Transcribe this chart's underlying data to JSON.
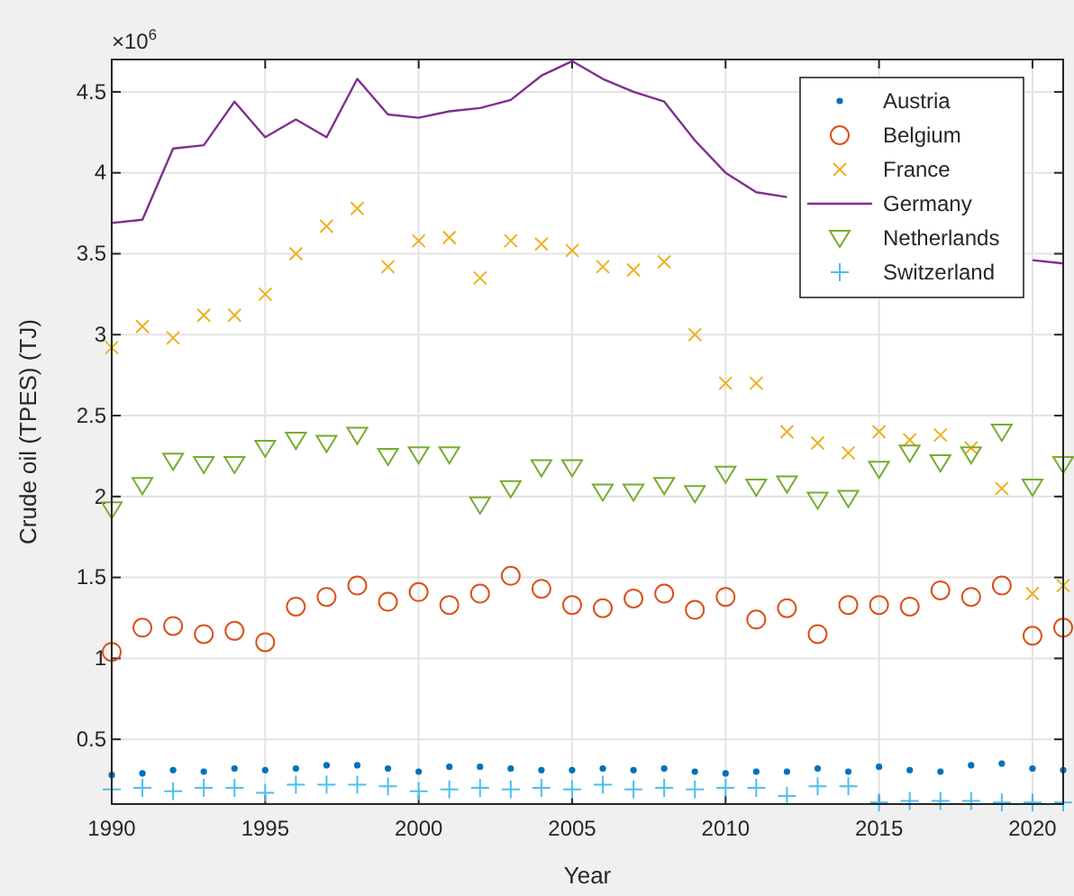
{
  "chart_data": {
    "type": "scatter",
    "xlabel": "Year",
    "ylabel": "Crude oil (TPES) (TJ)",
    "annotations": [
      "×10$^{6}$"
    ],
    "x": [
      1990,
      1991,
      1992,
      1993,
      1994,
      1995,
      1996,
      1997,
      1998,
      1999,
      2000,
      2001,
      2002,
      2003,
      2004,
      2005,
      2006,
      2007,
      2008,
      2009,
      2010,
      2011,
      2012,
      2013,
      2014,
      2015,
      2016,
      2017,
      2018,
      2019,
      2020,
      2021
    ],
    "series": [
      {
        "name": "Austria",
        "color": "#0072bd",
        "marker": "point",
        "values": [
          0.28,
          0.29,
          0.31,
          0.3,
          0.32,
          0.31,
          0.32,
          0.34,
          0.34,
          0.32,
          0.3,
          0.33,
          0.33,
          0.32,
          0.31,
          0.31,
          0.32,
          0.31,
          0.32,
          0.3,
          0.29,
          0.3,
          0.3,
          0.32,
          0.3,
          0.33,
          0.31,
          0.3,
          0.34,
          0.35,
          0.32,
          0.31
        ]
      },
      {
        "name": "Belgium",
        "color": "#d95319",
        "marker": "circle",
        "values": [
          1.04,
          1.19,
          1.2,
          1.15,
          1.17,
          1.1,
          1.32,
          1.38,
          1.45,
          1.35,
          1.41,
          1.33,
          1.4,
          1.51,
          1.43,
          1.33,
          1.31,
          1.37,
          1.4,
          1.3,
          1.38,
          1.24,
          1.31,
          1.15,
          1.33,
          1.33,
          1.32,
          1.42,
          1.38,
          1.45,
          1.14,
          1.19
        ]
      },
      {
        "name": "France",
        "color": "#edb120",
        "marker": "cross",
        "values": [
          2.92,
          3.05,
          2.98,
          3.12,
          3.12,
          3.25,
          3.5,
          3.67,
          3.78,
          3.42,
          3.58,
          3.6,
          3.35,
          3.58,
          3.56,
          3.52,
          3.42,
          3.4,
          3.45,
          3.0,
          2.7,
          2.7,
          2.4,
          2.33,
          2.27,
          2.4,
          2.35,
          2.38,
          2.3,
          2.05,
          1.4,
          1.45
        ]
      },
      {
        "name": "Germany",
        "color": "#7e2f8e",
        "type": "line",
        "marker": "none",
        "values": [
          3.69,
          3.71,
          4.15,
          4.17,
          4.44,
          4.22,
          4.33,
          4.22,
          4.58,
          4.36,
          4.34,
          4.38,
          4.4,
          4.45,
          4.6,
          4.69,
          4.58,
          4.5,
          4.44,
          4.2,
          4.0,
          3.88,
          3.85,
          null,
          null,
          null,
          null,
          null,
          null,
          null,
          3.46,
          3.44
        ]
      },
      {
        "name": "Netherlands",
        "color": "#77ac30",
        "marker": "triangle",
        "values": [
          1.92,
          2.07,
          2.22,
          2.2,
          2.2,
          2.3,
          2.35,
          2.33,
          2.38,
          2.25,
          2.26,
          2.26,
          1.95,
          2.05,
          2.18,
          2.18,
          2.03,
          2.03,
          2.07,
          2.02,
          2.14,
          2.06,
          2.08,
          1.98,
          1.99,
          2.17,
          2.27,
          2.21,
          2.26,
          2.4,
          2.06,
          2.2
        ]
      },
      {
        "name": "Switzerland",
        "color": "#4dbeee",
        "marker": "plus",
        "values": [
          0.19,
          0.2,
          0.18,
          0.2,
          0.2,
          0.17,
          0.22,
          0.22,
          0.22,
          0.21,
          0.18,
          0.19,
          0.2,
          0.19,
          0.2,
          0.19,
          0.22,
          0.19,
          0.2,
          0.19,
          0.2,
          0.2,
          0.15,
          0.21,
          0.21,
          0.11,
          0.12,
          0.12,
          0.12,
          0.11,
          0.11,
          0.11
        ]
      }
    ],
    "xlim": [
      1990,
      2021
    ],
    "xticks": [
      1990,
      1995,
      2000,
      2005,
      2010,
      2015,
      2020
    ],
    "ylim": [
      0.1,
      4.7
    ],
    "yticks": [
      0.5,
      1,
      1.5,
      2,
      2.5,
      3,
      3.5,
      4,
      4.5
    ],
    "grid": true,
    "legend": "top right"
  }
}
